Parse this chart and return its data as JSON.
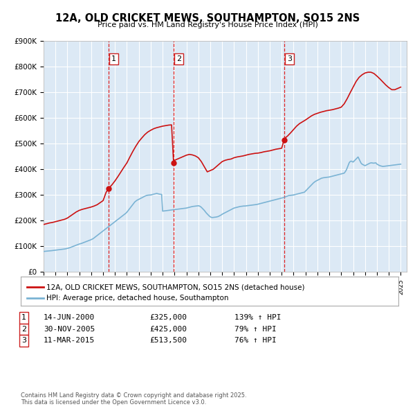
{
  "title": "12A, OLD CRICKET MEWS, SOUTHAMPTON, SO15 2NS",
  "subtitle": "Price paid vs. HM Land Registry's House Price Index (HPI)",
  "ylim": [
    0,
    900000
  ],
  "yticks": [
    0,
    100000,
    200000,
    300000,
    400000,
    500000,
    600000,
    700000,
    800000,
    900000
  ],
  "ytick_labels": [
    "£0",
    "£100K",
    "£200K",
    "£300K",
    "£400K",
    "£500K",
    "£600K",
    "£700K",
    "£800K",
    "£900K"
  ],
  "xmin": 1995.0,
  "xmax": 2025.5,
  "sale_dates": [
    2000.45,
    2005.92,
    2015.19
  ],
  "sale_prices": [
    325000,
    425000,
    513500
  ],
  "sale_labels": [
    "1",
    "2",
    "3"
  ],
  "vline_color": "#dd2222",
  "property_color": "#cc1111",
  "hpi_color": "#7ab3d4",
  "plot_bg": "#dce9f5",
  "grid_color": "#ffffff",
  "legend_entries": [
    "12A, OLD CRICKET MEWS, SOUTHAMPTON, SO15 2NS (detached house)",
    "HPI: Average price, detached house, Southampton"
  ],
  "table_rows": [
    {
      "num": "1",
      "date": "14-JUN-2000",
      "price": "£325,000",
      "change": "139% ↑ HPI"
    },
    {
      "num": "2",
      "date": "30-NOV-2005",
      "price": "£425,000",
      "change": "79% ↑ HPI"
    },
    {
      "num": "3",
      "date": "11-MAR-2015",
      "price": "£513,500",
      "change": "76% ↑ HPI"
    }
  ],
  "footer": "Contains HM Land Registry data © Crown copyright and database right 2025.\nThis data is licensed under the Open Government Licence v3.0.",
  "hpi_years_start": 1995.0,
  "hpi_years_step": 0.08333,
  "hpi_values": [
    80000,
    80500,
    81000,
    81200,
    81500,
    81800,
    82000,
    82500,
    83000,
    83500,
    84000,
    84500,
    85000,
    85500,
    86000,
    86500,
    87000,
    87500,
    88000,
    88500,
    89000,
    89500,
    90000,
    91000,
    92000,
    93000,
    94000,
    95500,
    97000,
    98500,
    100000,
    101500,
    103000,
    104500,
    106000,
    107500,
    109000,
    110000,
    111000,
    112500,
    114000,
    115500,
    117000,
    118500,
    120000,
    121500,
    123000,
    124500,
    126000,
    128000,
    130000,
    133000,
    136000,
    139000,
    142000,
    145000,
    148000,
    151000,
    154000,
    157000,
    160000,
    163000,
    166000,
    169000,
    172000,
    175000,
    178000,
    181000,
    184000,
    187000,
    190000,
    193000,
    196000,
    199000,
    202000,
    205000,
    208000,
    211000,
    214000,
    217000,
    220000,
    223000,
    226000,
    229000,
    233000,
    238000,
    243000,
    248000,
    253000,
    258000,
    263000,
    268000,
    273000,
    276000,
    279000,
    281000,
    283000,
    285000,
    287000,
    289000,
    291000,
    293000,
    295000,
    297000,
    298000,
    299000,
    299500,
    299800,
    300000,
    301000,
    302000,
    303000,
    304000,
    305000,
    306000,
    305000,
    304000,
    303000,
    302500,
    302000,
    237000,
    237500,
    238000,
    238500,
    239000,
    239500,
    240000,
    240500,
    241000,
    241500,
    242000,
    242500,
    243000,
    243500,
    244000,
    244500,
    245000,
    245500,
    246000,
    246500,
    247000,
    247500,
    248000,
    248500,
    249000,
    250000,
    251000,
    252000,
    253000,
    254000,
    255000,
    255500,
    256000,
    256500,
    257000,
    257500,
    258000,
    257000,
    255000,
    252000,
    248000,
    244000,
    240000,
    235000,
    230000,
    226000,
    222000,
    218000,
    215000,
    213000,
    212000,
    212500,
    213000,
    213500,
    214000,
    215000,
    216000,
    218000,
    220000,
    222000,
    225000,
    227000,
    229000,
    231000,
    233000,
    235000,
    237000,
    239000,
    241000,
    243000,
    245000,
    247000,
    249000,
    250000,
    251000,
    252000,
    253000,
    254000,
    255000,
    255500,
    256000,
    256500,
    257000,
    257000,
    257500,
    258000,
    258500,
    259000,
    259500,
    260000,
    260500,
    261000,
    261500,
    262000,
    262500,
    263000,
    264000,
    265000,
    266000,
    267000,
    268000,
    269000,
    270000,
    271000,
    272000,
    273000,
    274000,
    275000,
    276000,
    277000,
    278000,
    279000,
    280000,
    281000,
    282000,
    283000,
    284000,
    285000,
    286000,
    287000,
    288000,
    289000,
    290000,
    291500,
    293000,
    294500,
    296000,
    297500,
    298000,
    298500,
    299000,
    299500,
    300000,
    301000,
    302000,
    303000,
    304000,
    305000,
    306000,
    307000,
    308000,
    309000,
    310000,
    311000,
    315000,
    319000,
    323000,
    327000,
    331000,
    335000,
    339000,
    343000,
    347000,
    350000,
    353000,
    355000,
    357000,
    359000,
    361000,
    363000,
    365000,
    366000,
    367000,
    367500,
    368000,
    368500,
    369000,
    369500,
    370000,
    371000,
    372000,
    373000,
    374000,
    375000,
    376000,
    377000,
    378000,
    379000,
    380000,
    381000,
    382000,
    383000,
    384000,
    385000,
    390000,
    396000,
    405000,
    415000,
    425000,
    430000,
    432000,
    430000,
    428000,
    432000,
    436000,
    440000,
    444000,
    448000,
    440000,
    432000,
    424000,
    420000,
    418000,
    416000,
    414000,
    416000,
    418000,
    420000,
    422000,
    424000,
    425000,
    425000,
    424000,
    424000,
    424500,
    425000,
    420000,
    418000,
    416000,
    414000,
    413000,
    412000,
    411000,
    411500,
    412000,
    412500,
    413000,
    413500,
    414000,
    414500,
    415000,
    415500,
    416000,
    416500,
    417000,
    417500,
    418000,
    418500,
    419000,
    419500,
    420000
  ],
  "prop_seg1_years": [
    1995.0,
    1995.25,
    1995.5,
    1995.75,
    1996.0,
    1996.25,
    1996.5,
    1996.75,
    1997.0,
    1997.25,
    1997.5,
    1997.75,
    1998.0,
    1998.25,
    1998.5,
    1998.75,
    1999.0,
    1999.25,
    1999.5,
    1999.75,
    2000.0,
    2000.25,
    2000.45
  ],
  "prop_seg1_values": [
    185000,
    188000,
    191000,
    193000,
    196000,
    199000,
    202000,
    205000,
    210000,
    218000,
    226000,
    234000,
    240000,
    244000,
    247000,
    250000,
    253000,
    257000,
    262000,
    270000,
    278000,
    310000,
    325000
  ],
  "prop_seg2_years": [
    2005.92,
    2006.0,
    2006.25,
    2006.5,
    2006.75,
    2007.0,
    2007.25,
    2007.5,
    2007.75,
    2008.0,
    2008.25,
    2008.5,
    2008.75,
    2009.0,
    2009.25,
    2009.5,
    2009.75,
    2010.0,
    2010.25,
    2010.5,
    2010.75,
    2011.0,
    2011.25,
    2011.5,
    2011.75,
    2012.0,
    2012.25,
    2012.5,
    2012.75,
    2013.0,
    2013.25,
    2013.5,
    2013.75,
    2014.0,
    2014.25,
    2014.5,
    2014.75,
    2015.0,
    2015.19
  ],
  "prop_seg2_values": [
    425000,
    435000,
    440000,
    445000,
    450000,
    455000,
    458000,
    456000,
    452000,
    445000,
    430000,
    410000,
    390000,
    395000,
    400000,
    410000,
    420000,
    430000,
    435000,
    438000,
    440000,
    445000,
    448000,
    450000,
    452000,
    455000,
    458000,
    460000,
    462000,
    463000,
    465000,
    468000,
    470000,
    472000,
    475000,
    478000,
    480000,
    482000,
    513500
  ],
  "prop_seg3_years": [
    2015.19,
    2015.25,
    2015.5,
    2015.75,
    2016.0,
    2016.25,
    2016.5,
    2016.75,
    2017.0,
    2017.25,
    2017.5,
    2017.75,
    2018.0,
    2018.25,
    2018.5,
    2018.75,
    2019.0,
    2019.25,
    2019.5,
    2019.75,
    2020.0,
    2020.25,
    2020.5,
    2020.75,
    2021.0,
    2021.25,
    2021.5,
    2021.75,
    2022.0,
    2022.25,
    2022.5,
    2022.75,
    2023.0,
    2023.25,
    2023.5,
    2023.75,
    2024.0,
    2024.25,
    2024.5,
    2024.75,
    2025.0
  ],
  "prop_seg3_values": [
    513500,
    520000,
    530000,
    542000,
    555000,
    568000,
    578000,
    585000,
    592000,
    600000,
    608000,
    614000,
    618000,
    622000,
    625000,
    628000,
    630000,
    632000,
    635000,
    638000,
    642000,
    655000,
    675000,
    698000,
    720000,
    742000,
    758000,
    768000,
    775000,
    778000,
    778000,
    773000,
    763000,
    752000,
    740000,
    728000,
    718000,
    710000,
    710000,
    715000,
    720000
  ],
  "prop_seg_between1_2_years": [
    2000.45,
    2000.75,
    2001.0,
    2001.25,
    2001.5,
    2001.75,
    2002.0,
    2002.25,
    2002.5,
    2002.75,
    2003.0,
    2003.25,
    2003.5,
    2003.75,
    2004.0,
    2004.25,
    2004.5,
    2004.75,
    2005.0,
    2005.25,
    2005.5,
    2005.75,
    2005.92
  ],
  "prop_seg_between1_2_values": [
    325000,
    340000,
    355000,
    372000,
    390000,
    408000,
    425000,
    448000,
    470000,
    490000,
    508000,
    522000,
    535000,
    545000,
    552000,
    558000,
    562000,
    565000,
    568000,
    570000,
    572000,
    573000,
    425000
  ]
}
